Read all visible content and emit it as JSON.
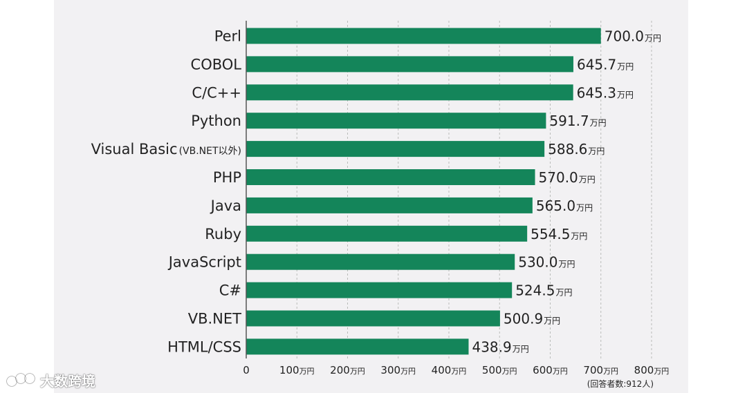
{
  "chart_data": {
    "type": "bar",
    "orientation": "horizontal",
    "categories": [
      "Perl",
      "COBOL",
      "C/C++",
      "Python",
      "Visual Basic",
      "PHP",
      "Java",
      "Ruby",
      "JavaScript",
      "C#",
      "VB.NET",
      "HTML/CSS"
    ],
    "category_notes": {
      "Visual Basic": "(VB.NET以外)"
    },
    "values": [
      700.0,
      645.7,
      645.3,
      591.7,
      588.6,
      570.0,
      565.0,
      554.5,
      530.0,
      524.5,
      500.9,
      438.9
    ],
    "value_unit": "万円",
    "xlim": [
      0,
      800
    ],
    "x_ticks": [
      0,
      100,
      200,
      300,
      400,
      500,
      600,
      700,
      800
    ],
    "tick_unit": "万円",
    "grid": true,
    "footnote": "(回答者数:912人)",
    "bar_color": "#14855a"
  },
  "watermark": {
    "text": "大数跨境",
    "logo_icon": "brand-logo-icon"
  }
}
